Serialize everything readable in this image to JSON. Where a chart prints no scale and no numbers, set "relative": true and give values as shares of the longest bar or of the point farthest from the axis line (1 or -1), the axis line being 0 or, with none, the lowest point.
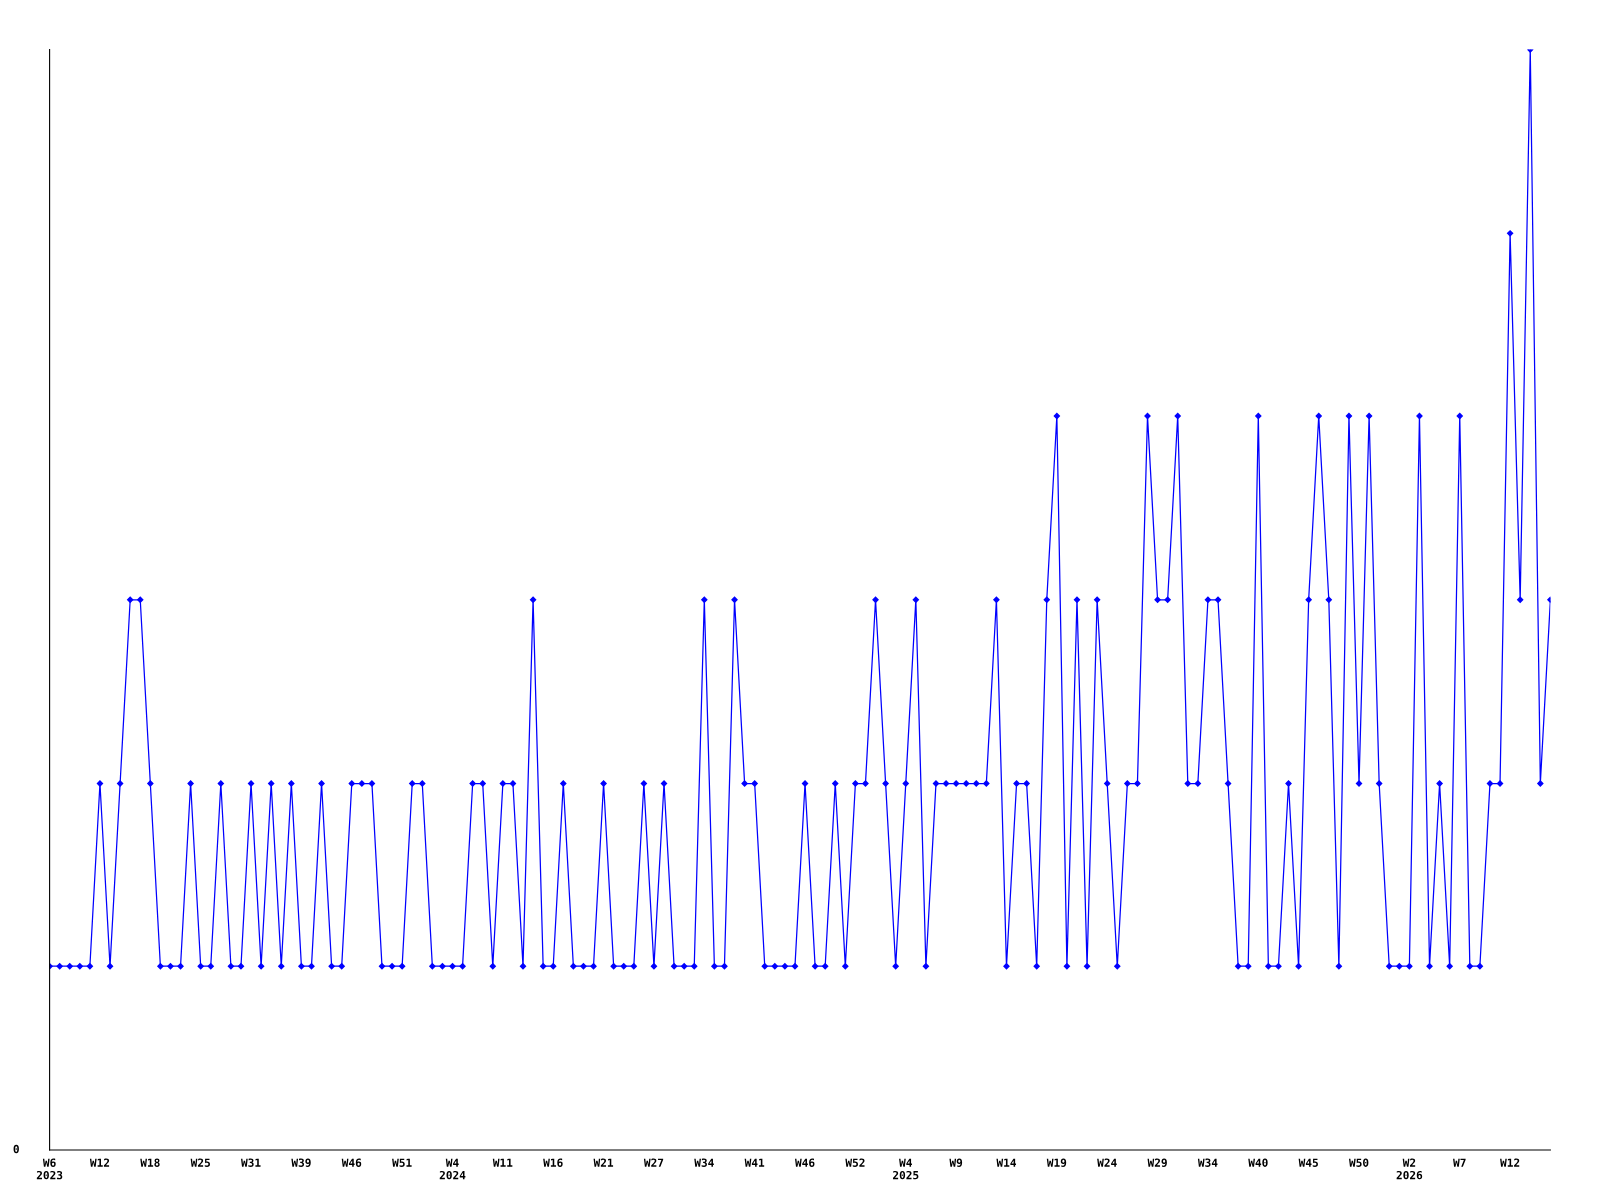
{
  "chart_data": {
    "type": "line",
    "relative": true,
    "marker": "diamond",
    "line_style": "solid",
    "grid": false,
    "categories": [
      "W6\n2023",
      null,
      null,
      null,
      null,
      "W12",
      null,
      null,
      null,
      null,
      "W18",
      null,
      null,
      null,
      null,
      "W25",
      null,
      null,
      null,
      null,
      "W31",
      null,
      null,
      null,
      null,
      "W39",
      null,
      null,
      null,
      null,
      "W46",
      null,
      null,
      null,
      null,
      "W51",
      null,
      null,
      null,
      null,
      "W4\n2024",
      null,
      null,
      null,
      null,
      "W11",
      null,
      null,
      null,
      null,
      "W16",
      null,
      null,
      null,
      null,
      "W21",
      null,
      null,
      null,
      null,
      "W27",
      null,
      null,
      null,
      null,
      "W34",
      null,
      null,
      null,
      null,
      "W41",
      null,
      null,
      null,
      null,
      "W46",
      null,
      null,
      null,
      null,
      "W52",
      null,
      null,
      null,
      null,
      "W4\n2025",
      null,
      null,
      null,
      null,
      "W9",
      null,
      null,
      null,
      null,
      "W14",
      null,
      null,
      null,
      null,
      "W19",
      null,
      null,
      null,
      null,
      "W24",
      null,
      null,
      null,
      null,
      "W29",
      null,
      null,
      null,
      null,
      "W34",
      null,
      null,
      null,
      null,
      "W40",
      null,
      null,
      null,
      null,
      "W45",
      null,
      null,
      null,
      null,
      "W50",
      null,
      null,
      null,
      null,
      "W2\n2026",
      null,
      null,
      null,
      null,
      "W7",
      null,
      null,
      null,
      null,
      "W12",
      null,
      null,
      null,
      null
    ],
    "series": [
      {
        "color": "#0000ff",
        "values": [
          0.167,
          0.167,
          0.167,
          0.167,
          0.167,
          0.333,
          0.167,
          0.333,
          0.5,
          0.5,
          0.333,
          0.167,
          0.167,
          0.167,
          0.333,
          0.167,
          0.167,
          0.333,
          0.167,
          0.167,
          0.333,
          0.167,
          0.333,
          0.167,
          0.333,
          0.167,
          0.167,
          0.333,
          0.167,
          0.167,
          0.333,
          0.333,
          0.333,
          0.167,
          0.167,
          0.167,
          0.333,
          0.333,
          0.167,
          0.167,
          0.167,
          0.167,
          0.333,
          0.333,
          0.167,
          0.333,
          0.333,
          0.167,
          0.5,
          0.167,
          0.167,
          0.333,
          0.167,
          0.167,
          0.167,
          0.333,
          0.167,
          0.167,
          0.167,
          0.333,
          0.167,
          0.333,
          0.167,
          0.167,
          0.167,
          0.5,
          0.167,
          0.167,
          0.5,
          0.333,
          0.333,
          0.167,
          0.167,
          0.167,
          0.167,
          0.333,
          0.167,
          0.167,
          0.333,
          0.167,
          0.333,
          0.333,
          0.5,
          0.333,
          0.167,
          0.333,
          0.5,
          0.167,
          0.333,
          0.333,
          0.333,
          0.333,
          0.333,
          0.333,
          0.5,
          0.167,
          0.333,
          0.333,
          0.167,
          0.5,
          0.667,
          0.167,
          0.5,
          0.167,
          0.5,
          0.333,
          0.167,
          0.333,
          0.333,
          0.667,
          0.5,
          0.5,
          0.667,
          0.333,
          0.333,
          0.5,
          0.5,
          0.333,
          0.167,
          0.167,
          0.667,
          0.167,
          0.167,
          0.333,
          0.167,
          0.5,
          0.667,
          0.5,
          0.167,
          0.667,
          0.333,
          0.667,
          0.333,
          0.167,
          0.167,
          0.167,
          0.667,
          0.167,
          0.333,
          0.167,
          0.667,
          0.167,
          0.167,
          0.333,
          0.333,
          0.833,
          0.5,
          1,
          0.333,
          0.5
        ]
      }
    ],
    "annotations": [
      "0"
    ]
  }
}
